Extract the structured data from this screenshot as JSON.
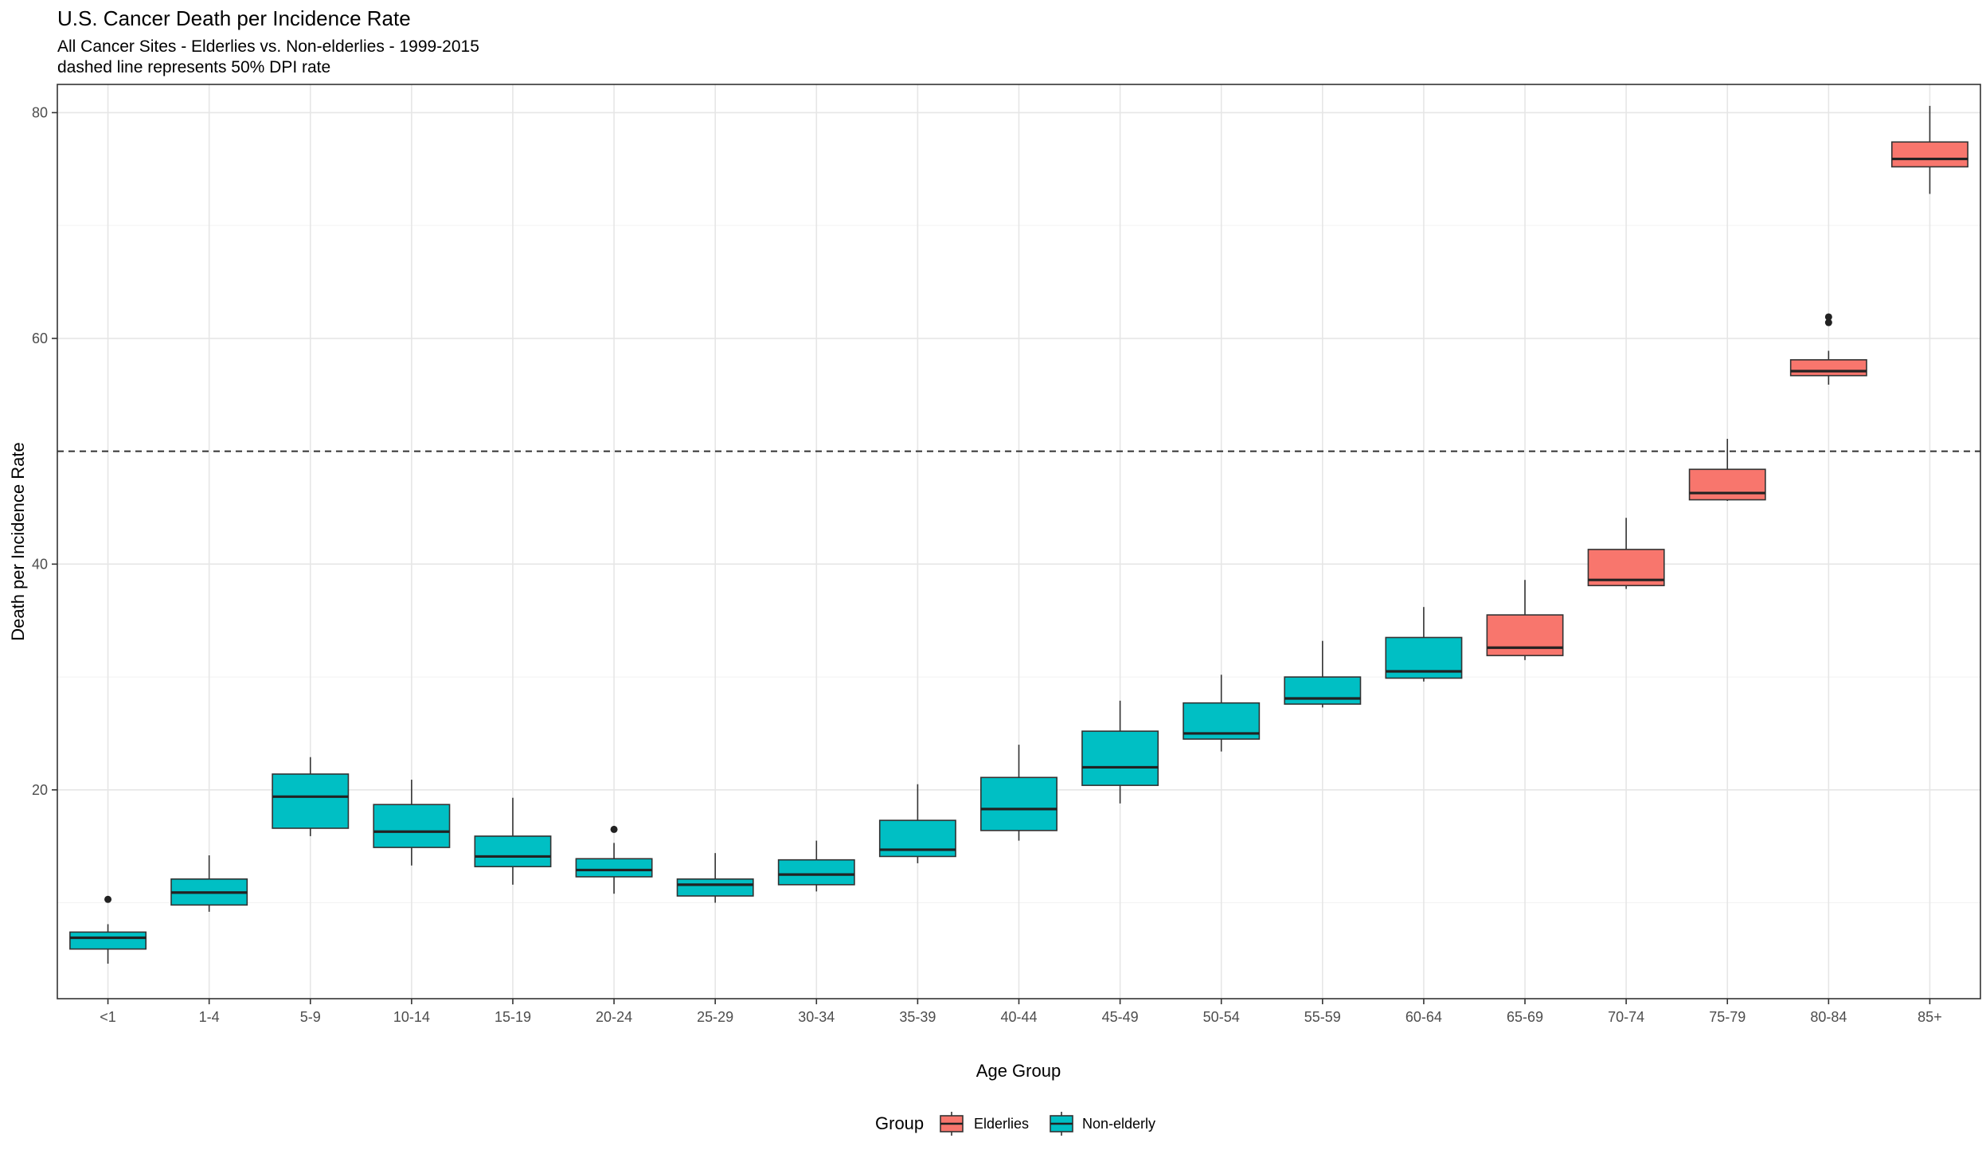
{
  "chart_data": {
    "type": "boxplot",
    "title": "U.S. Cancer Death per Incidence Rate",
    "subtitle_lines": [
      "All Cancer Sites - Elderlies vs. Non-elderlies - 1999-2015",
      "dashed line represents 50% DPI rate"
    ],
    "xlabel": "Age Group",
    "ylabel": "Death per Incidence Rate",
    "ylim": [
      1.5,
      82.5
    ],
    "y_ticks": [
      20,
      40,
      60,
      80
    ],
    "reference_line": {
      "y": 50,
      "style": "dashed"
    },
    "grid": true,
    "legend": {
      "title": "Group",
      "position": "bottom",
      "entries": [
        {
          "name": "Elderlies",
          "color": "#F8766D"
        },
        {
          "name": "Non-elderly",
          "color": "#00BFC4"
        }
      ]
    },
    "categories": [
      "<1",
      "1-4",
      "5-9",
      "10-14",
      "15-19",
      "20-24",
      "25-29",
      "30-34",
      "35-39",
      "40-44",
      "45-49",
      "50-54",
      "55-59",
      "60-64",
      "65-69",
      "70-74",
      "75-79",
      "80-84",
      "85+"
    ],
    "boxes": [
      {
        "category": "<1",
        "group": "Non-elderly",
        "min": 4.6,
        "q1": 5.9,
        "median": 6.9,
        "q3": 7.4,
        "max": 8.1,
        "outliers": [
          10.3
        ]
      },
      {
        "category": "1-4",
        "group": "Non-elderly",
        "min": 9.2,
        "q1": 9.8,
        "median": 10.9,
        "q3": 12.1,
        "max": 14.2,
        "outliers": []
      },
      {
        "category": "5-9",
        "group": "Non-elderly",
        "min": 15.9,
        "q1": 16.6,
        "median": 19.4,
        "q3": 21.4,
        "max": 22.9,
        "outliers": []
      },
      {
        "category": "10-14",
        "group": "Non-elderly",
        "min": 13.3,
        "q1": 14.9,
        "median": 16.3,
        "q3": 18.7,
        "max": 20.9,
        "outliers": []
      },
      {
        "category": "15-19",
        "group": "Non-elderly",
        "min": 11.6,
        "q1": 13.2,
        "median": 14.1,
        "q3": 15.9,
        "max": 19.3,
        "outliers": []
      },
      {
        "category": "20-24",
        "group": "Non-elderly",
        "min": 10.8,
        "q1": 12.3,
        "median": 12.9,
        "q3": 13.9,
        "max": 15.3,
        "outliers": [
          16.5
        ]
      },
      {
        "category": "25-29",
        "group": "Non-elderly",
        "min": 10.0,
        "q1": 10.6,
        "median": 11.6,
        "q3": 12.1,
        "max": 14.4,
        "outliers": []
      },
      {
        "category": "30-34",
        "group": "Non-elderly",
        "min": 11.0,
        "q1": 11.6,
        "median": 12.5,
        "q3": 13.8,
        "max": 15.5,
        "outliers": []
      },
      {
        "category": "35-39",
        "group": "Non-elderly",
        "min": 13.5,
        "q1": 14.1,
        "median": 14.7,
        "q3": 17.3,
        "max": 20.5,
        "outliers": []
      },
      {
        "category": "40-44",
        "group": "Non-elderly",
        "min": 15.5,
        "q1": 16.4,
        "median": 18.3,
        "q3": 21.1,
        "max": 24.0,
        "outliers": []
      },
      {
        "category": "45-49",
        "group": "Non-elderly",
        "min": 18.8,
        "q1": 20.4,
        "median": 22.0,
        "q3": 25.2,
        "max": 27.9,
        "outliers": []
      },
      {
        "category": "50-54",
        "group": "Non-elderly",
        "min": 23.4,
        "q1": 24.5,
        "median": 25.0,
        "q3": 27.7,
        "max": 30.2,
        "outliers": []
      },
      {
        "category": "55-59",
        "group": "Non-elderly",
        "min": 27.3,
        "q1": 27.6,
        "median": 28.1,
        "q3": 30.0,
        "max": 33.2,
        "outliers": []
      },
      {
        "category": "60-64",
        "group": "Non-elderly",
        "min": 29.6,
        "q1": 29.9,
        "median": 30.5,
        "q3": 33.5,
        "max": 36.2,
        "outliers": []
      },
      {
        "category": "65-69",
        "group": "Elderlies",
        "min": 31.5,
        "q1": 31.9,
        "median": 32.6,
        "q3": 35.5,
        "max": 38.6,
        "outliers": []
      },
      {
        "category": "70-74",
        "group": "Elderlies",
        "min": 37.8,
        "q1": 38.1,
        "median": 38.6,
        "q3": 41.3,
        "max": 44.1,
        "outliers": []
      },
      {
        "category": "75-79",
        "group": "Elderlies",
        "min": 45.6,
        "q1": 45.7,
        "median": 46.3,
        "q3": 48.4,
        "max": 51.1,
        "outliers": []
      },
      {
        "category": "80-84",
        "group": "Elderlies",
        "min": 55.9,
        "q1": 56.7,
        "median": 57.1,
        "q3": 58.1,
        "max": 58.9,
        "outliers": [
          61.4,
          61.9
        ]
      },
      {
        "category": "85+",
        "group": "Elderlies",
        "min": 72.8,
        "q1": 75.2,
        "median": 75.9,
        "q3": 77.4,
        "max": 80.6,
        "outliers": []
      }
    ]
  }
}
